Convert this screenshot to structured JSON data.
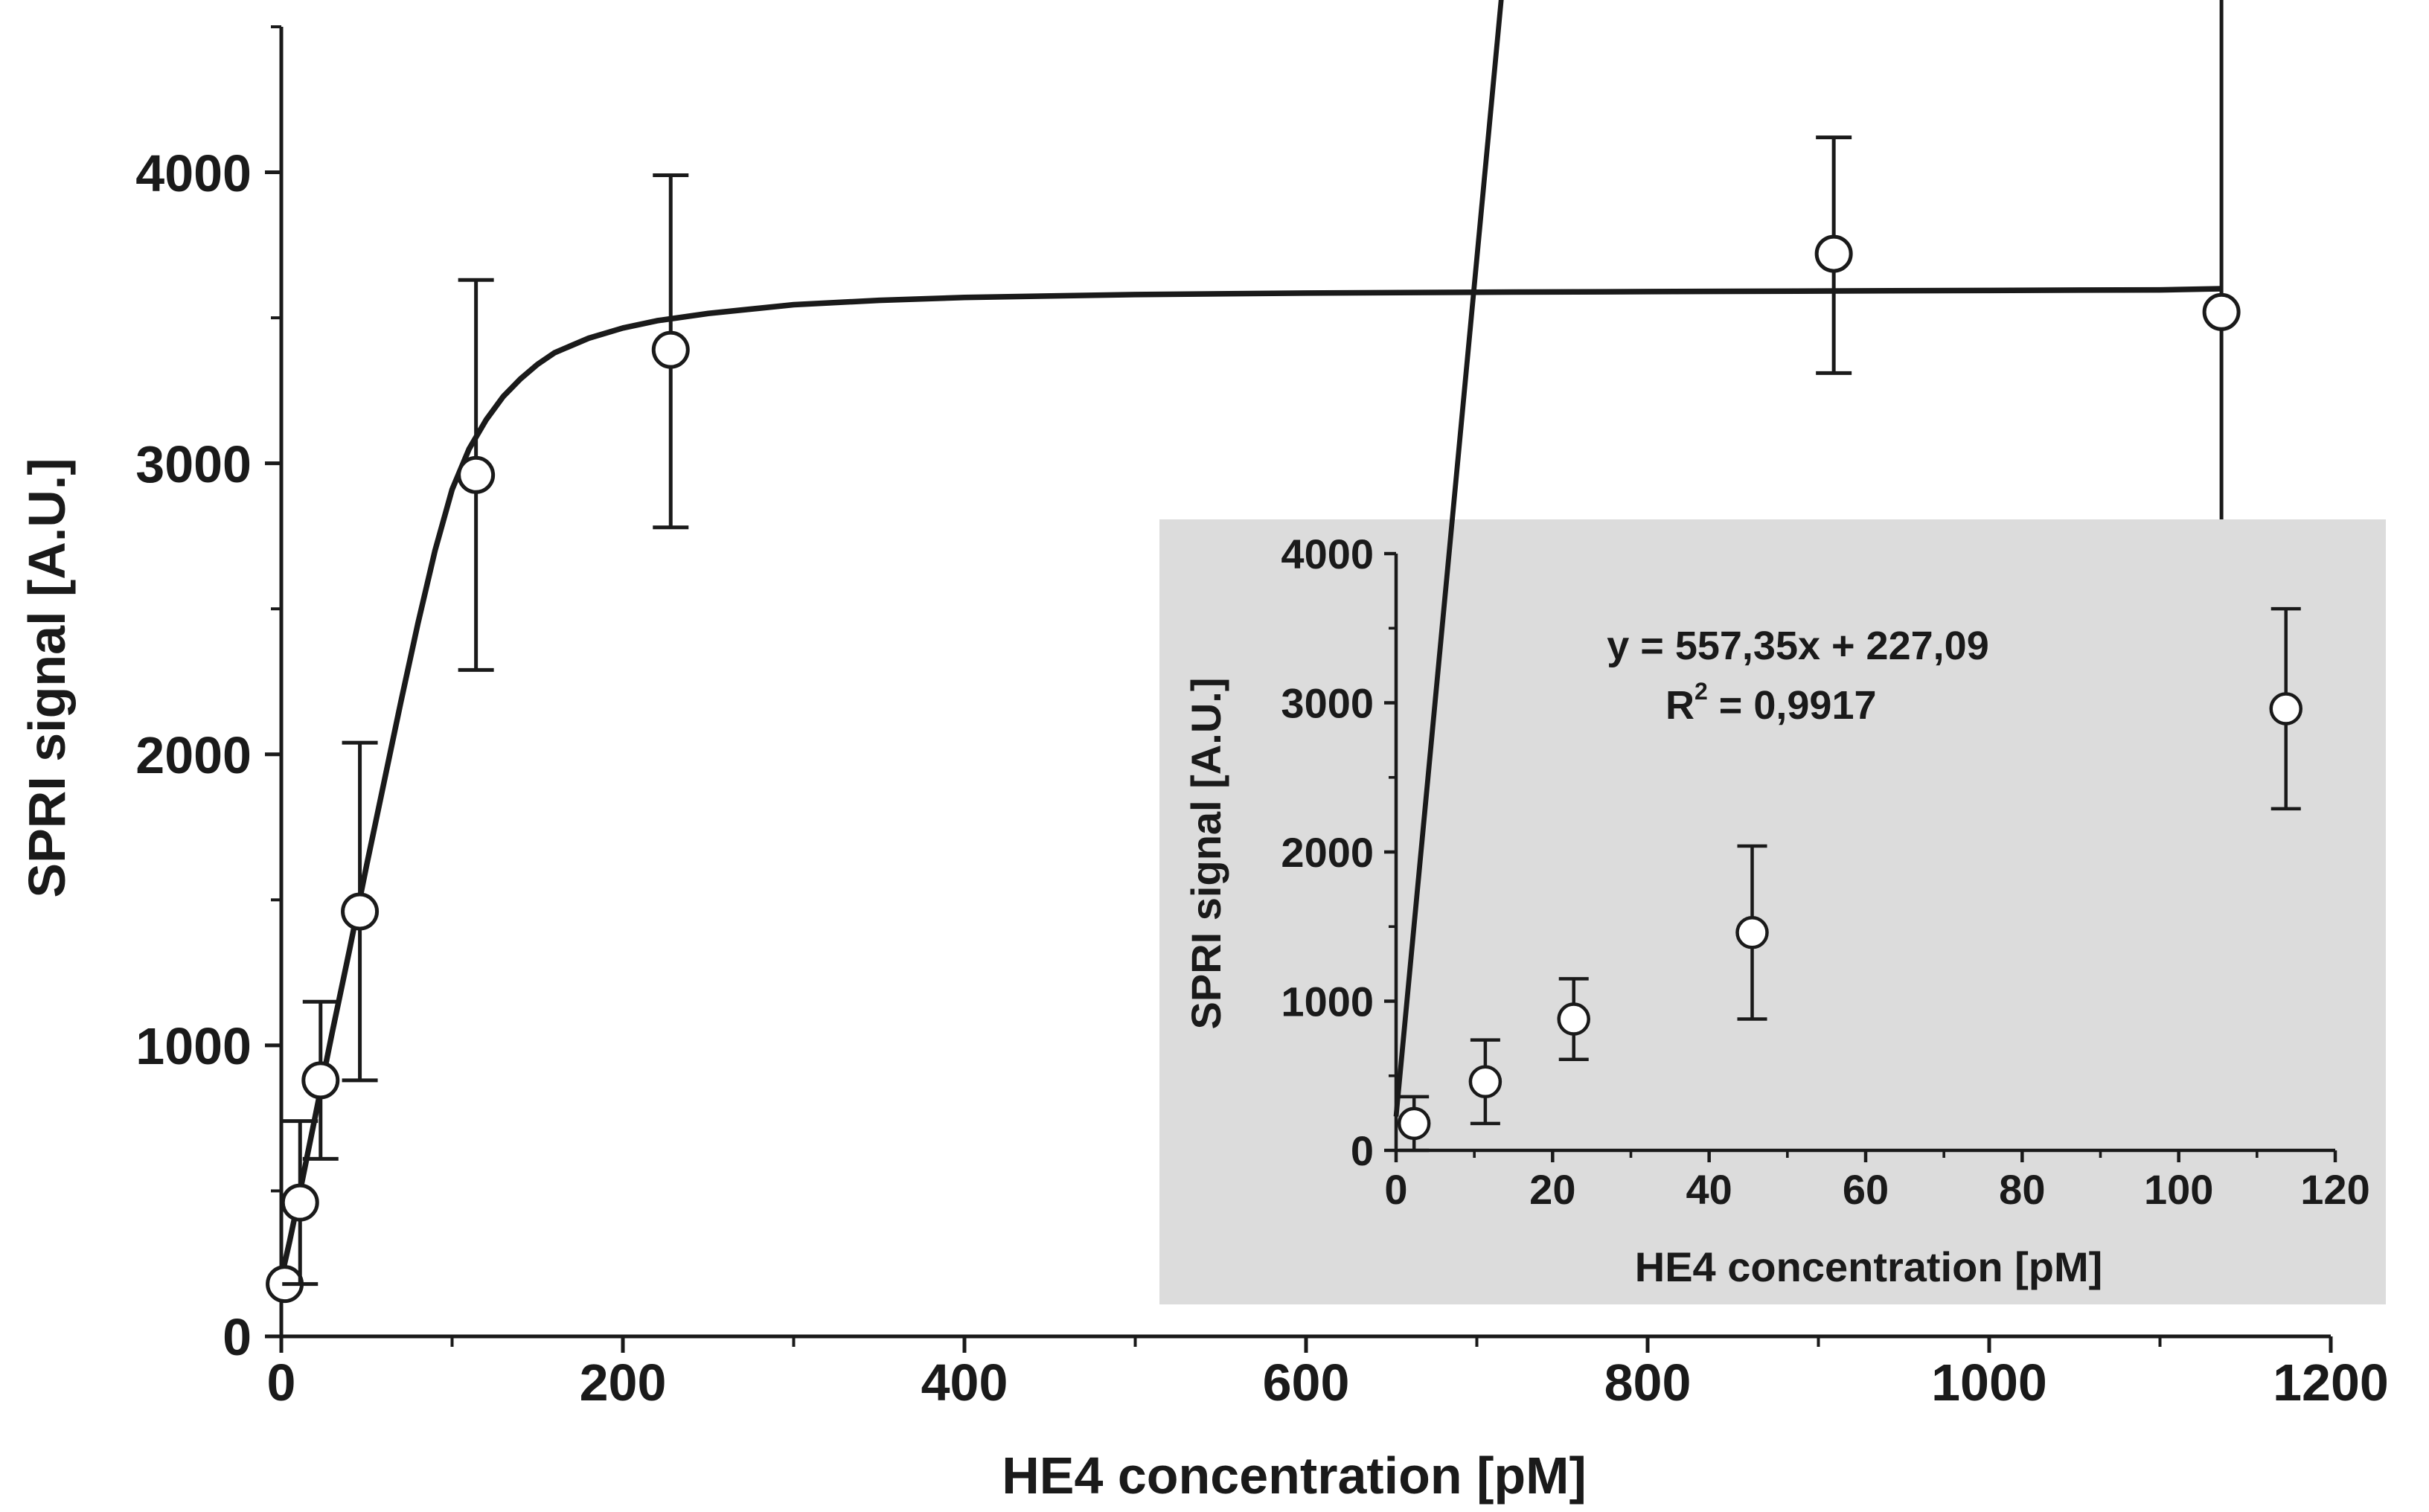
{
  "chart_data": [
    {
      "type": "scatter",
      "title": "",
      "xlabel": "HE4 concentration [pM]",
      "ylabel": "SPRI signal [A.U.]",
      "xlim": [
        0,
        1200
      ],
      "ylim": [
        0,
        4500
      ],
      "x_ticks": [
        0,
        200,
        400,
        600,
        800,
        1000,
        1200
      ],
      "y_ticks": [
        0,
        1000,
        2000,
        3000,
        4000
      ],
      "x_tick_labels": [
        "0",
        "200",
        "400",
        "600",
        "800",
        "1000",
        "1200"
      ],
      "y_tick_labels": [
        "0",
        "1000",
        "2000",
        "3000",
        "4000"
      ],
      "grid": false,
      "series": [
        {
          "x": [
            2,
            11,
            23,
            46,
            114,
            228,
            909,
            1136
          ],
          "y": [
            180,
            460,
            880,
            1460,
            2960,
            3390,
            3720,
            3520
          ],
          "err_low": [
            0,
            280,
            270,
            580,
            670,
            610,
            410,
            1210
          ],
          "err_high": [
            0,
            280,
            270,
            580,
            670,
            600,
            400,
            1160
          ]
        }
      ],
      "fit_curve": {
        "x": [
          0,
          5,
          10,
          20,
          30,
          40,
          50,
          60,
          70,
          80,
          90,
          100,
          110,
          120,
          130,
          140,
          150,
          160,
          180,
          200,
          220,
          250,
          300,
          350,
          400,
          500,
          600,
          700,
          800,
          900,
          1000,
          1100,
          1136
        ],
        "y": [
          200,
          330,
          470,
          760,
          1050,
          1330,
          1620,
          1900,
          2180,
          2450,
          2700,
          2910,
          3050,
          3150,
          3230,
          3290,
          3340,
          3380,
          3430,
          3465,
          3490,
          3515,
          3545,
          3560,
          3570,
          3580,
          3585,
          3588,
          3590,
          3592,
          3594,
          3596,
          3600
        ]
      }
    },
    {
      "type": "scatter",
      "title": "",
      "xlabel": "HE4 concentration [pM]",
      "ylabel": "SPRI signal [A.U.]",
      "xlim": [
        0,
        120
      ],
      "ylim": [
        0,
        4000
      ],
      "x_ticks": [
        0,
        20,
        40,
        60,
        80,
        100,
        120
      ],
      "y_ticks": [
        0,
        1000,
        2000,
        3000,
        4000
      ],
      "x_tick_labels": [
        "0",
        "20",
        "40",
        "60",
        "80",
        "100",
        "120"
      ],
      "y_tick_labels": [
        "0",
        "1000",
        "2000",
        "3000",
        "4000"
      ],
      "grid": false,
      "background_color": "#dcdcdc",
      "series": [
        {
          "x": [
            2.3,
            11.4,
            22.7,
            45.5,
            113.7
          ],
          "y": [
            180,
            460,
            880,
            1460,
            2960
          ],
          "err_low": [
            180,
            280,
            270,
            580,
            670
          ],
          "err_high": [
            180,
            280,
            270,
            580,
            670
          ]
        }
      ],
      "fit_line": {
        "slope": 557.35,
        "intercept": 227.09
      },
      "annotations": [
        "y = 557,35x + 227,09",
        "R",
        "2",
        " = 0,9917"
      ]
    }
  ]
}
